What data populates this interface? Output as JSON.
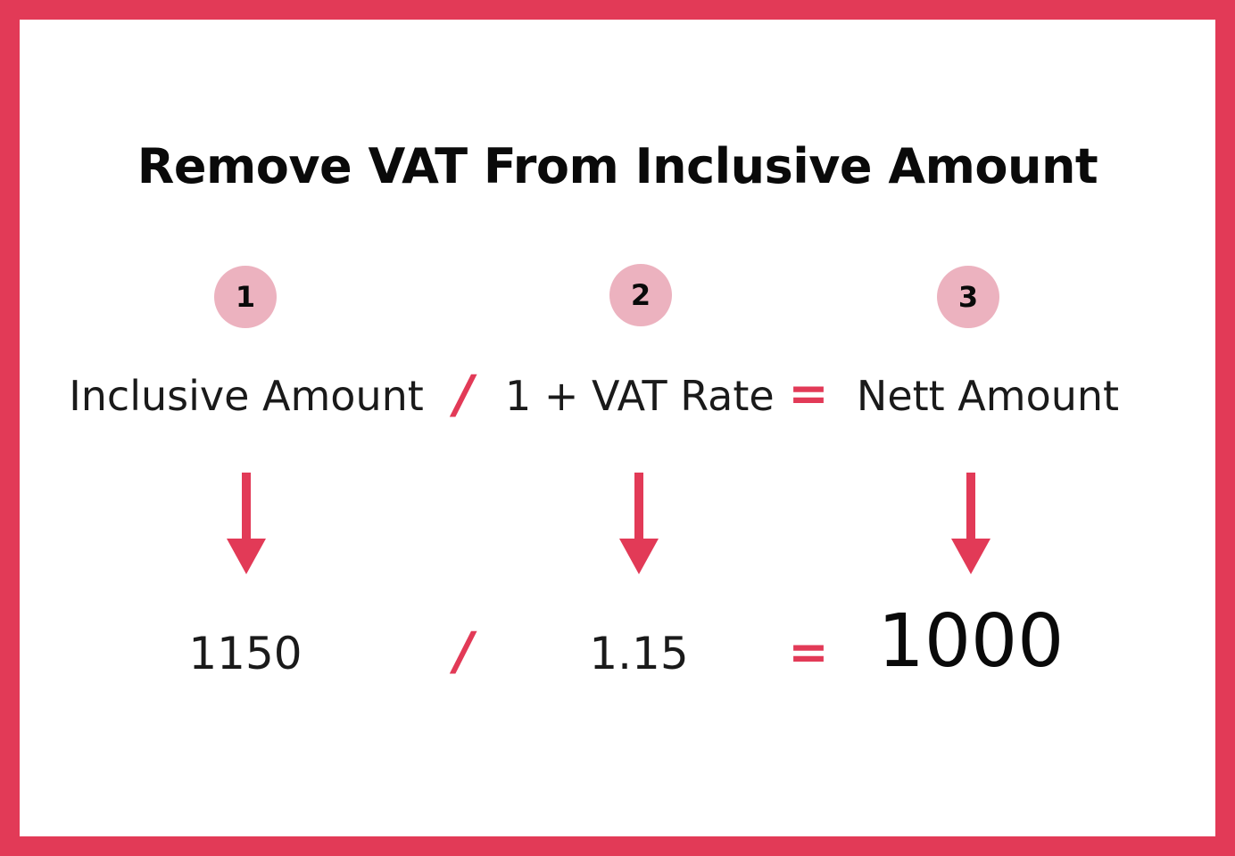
{
  "title": "Remove VAT From Inclusive Amount",
  "steps": [
    {
      "number": "1",
      "label": "Inclusive Amount",
      "value": "1150"
    },
    {
      "number": "2",
      "label": "1 + VAT Rate",
      "value": "1.15"
    },
    {
      "number": "3",
      "label": "Nett Amount",
      "value": "1000"
    }
  ],
  "operators": {
    "divide": "/",
    "equals": "="
  },
  "colors": {
    "accent": "#e23a57",
    "badge": "#ecb2bf",
    "text": "#0a0a0a",
    "background": "#ffffff"
  },
  "icons": {
    "arrow": "arrow-down-icon"
  }
}
